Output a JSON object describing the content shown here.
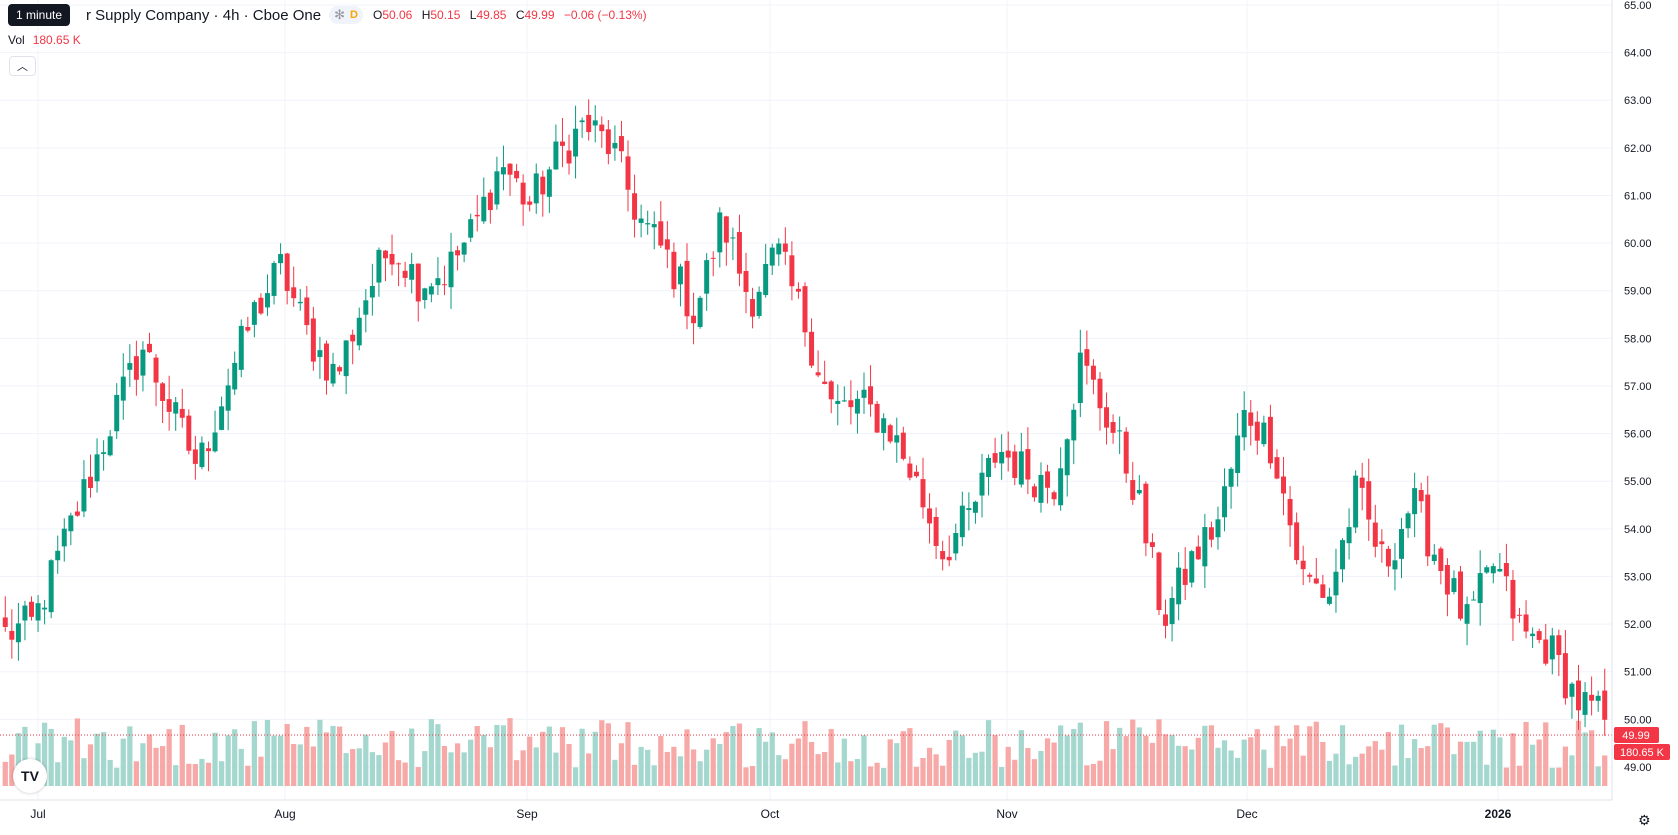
{
  "header": {
    "tooltip": "1 minute",
    "title": "r Supply Company · 4h · Cboe One",
    "interval_badge": "D",
    "ohlc": {
      "o_label": "O",
      "o": "50.06",
      "h_label": "H",
      "h": "50.15",
      "l_label": "L",
      "l": "49.85",
      "c_label": "C",
      "c": "49.99",
      "change": "−0.06 (−0.13%)"
    },
    "vol_label": "Vol",
    "vol_value": "180.65 K"
  },
  "price_axis": {
    "labels": [
      "65.00",
      "64.00",
      "63.00",
      "62.00",
      "61.00",
      "60.00",
      "59.00",
      "58.00",
      "57.00",
      "56.00",
      "55.00",
      "54.00",
      "53.00",
      "52.00",
      "51.00",
      "50.00",
      "49.00"
    ]
  },
  "time_axis": {
    "labels": [
      "Jul",
      "Aug",
      "Sep",
      "Oct",
      "Nov",
      "Dec",
      "2026"
    ]
  },
  "last_price": {
    "price": "49.99",
    "volume": "180.65 K"
  },
  "colors": {
    "up": "#089981",
    "down": "#f23645",
    "up_vol": "#a4d8cf",
    "down_vol": "#f7a9a7",
    "grid": "#f0f3fa"
  },
  "icons": {
    "logo": "tradingview-logo-icon",
    "settings": "gear-icon",
    "collapse": "chevron-up-icon"
  },
  "chart_data": {
    "type": "candlestick",
    "interval": "4h",
    "y_range": [
      48.6,
      65.0
    ],
    "last_close": 49.99,
    "anchors": [
      {
        "date": "Jul",
        "price": 51.8
      },
      {
        "date": "Jul",
        "price": 52.0
      },
      {
        "date": "Jul",
        "price": 53.5
      },
      {
        "date": "Jul",
        "price": 55.0
      },
      {
        "date": "Jul",
        "price": 56.5
      },
      {
        "date": "Jul",
        "price": 57.8
      },
      {
        "date": "Jul",
        "price": 56.5
      },
      {
        "date": "Jul",
        "price": 55.3
      },
      {
        "date": "Jul",
        "price": 57.0
      },
      {
        "date": "Jul",
        "price": 58.5
      },
      {
        "date": "Jul",
        "price": 59.5
      },
      {
        "date": "Jul",
        "price": 58.0
      },
      {
        "date": "Jul",
        "price": 57.2
      },
      {
        "date": "Aug",
        "price": 58.8
      },
      {
        "date": "Aug",
        "price": 60.0
      },
      {
        "date": "Aug",
        "price": 59.2
      },
      {
        "date": "Aug",
        "price": 59.4
      },
      {
        "date": "Aug",
        "price": 60.3
      },
      {
        "date": "Aug",
        "price": 61.7
      },
      {
        "date": "Aug",
        "price": 60.8
      },
      {
        "date": "Aug",
        "price": 61.8
      },
      {
        "date": "Aug",
        "price": 62.5
      },
      {
        "date": "Sep",
        "price": 62.0
      },
      {
        "date": "Sep",
        "price": 60.5
      },
      {
        "date": "Sep",
        "price": 59.7
      },
      {
        "date": "Sep",
        "price": 58.5
      },
      {
        "date": "Sep",
        "price": 60.5
      },
      {
        "date": "Sep",
        "price": 58.8
      },
      {
        "date": "Sep",
        "price": 59.8
      },
      {
        "date": "Sep",
        "price": 58.3
      },
      {
        "date": "Sep",
        "price": 56.5
      },
      {
        "date": "Sep",
        "price": 56.6
      },
      {
        "date": "Oct",
        "price": 56.2
      },
      {
        "date": "Oct",
        "price": 55.0
      },
      {
        "date": "Oct",
        "price": 53.5
      },
      {
        "date": "Oct",
        "price": 54.3
      },
      {
        "date": "Oct",
        "price": 55.7
      },
      {
        "date": "Oct",
        "price": 55.2
      },
      {
        "date": "Oct",
        "price": 54.9
      },
      {
        "date": "Oct",
        "price": 57.5
      },
      {
        "date": "Oct",
        "price": 56.3
      },
      {
        "date": "Oct",
        "price": 54.8
      },
      {
        "date": "Nov",
        "price": 52.1
      },
      {
        "date": "Nov",
        "price": 53.3
      },
      {
        "date": "Nov",
        "price": 54.2
      },
      {
        "date": "Nov",
        "price": 56.5
      },
      {
        "date": "Nov",
        "price": 55.7
      },
      {
        "date": "Nov",
        "price": 53.0
      },
      {
        "date": "Nov",
        "price": 52.6
      },
      {
        "date": "Nov",
        "price": 54.8
      },
      {
        "date": "Dec",
        "price": 53.2
      },
      {
        "date": "Dec",
        "price": 54.6
      },
      {
        "date": "Dec",
        "price": 53.3
      },
      {
        "date": "Dec",
        "price": 52.0
      },
      {
        "date": "Dec",
        "price": 53.3
      },
      {
        "date": "Dec",
        "price": 51.8
      },
      {
        "date": "Dec",
        "price": 51.5
      },
      {
        "date": "Dec",
        "price": 50.4
      },
      {
        "date": "2026",
        "price": 49.99
      }
    ],
    "volume_spikes": [
      {
        "date": "Jul",
        "note": "largest volume bars"
      },
      {
        "date": "Oct",
        "note": "large volume bar near 58 high"
      }
    ]
  }
}
